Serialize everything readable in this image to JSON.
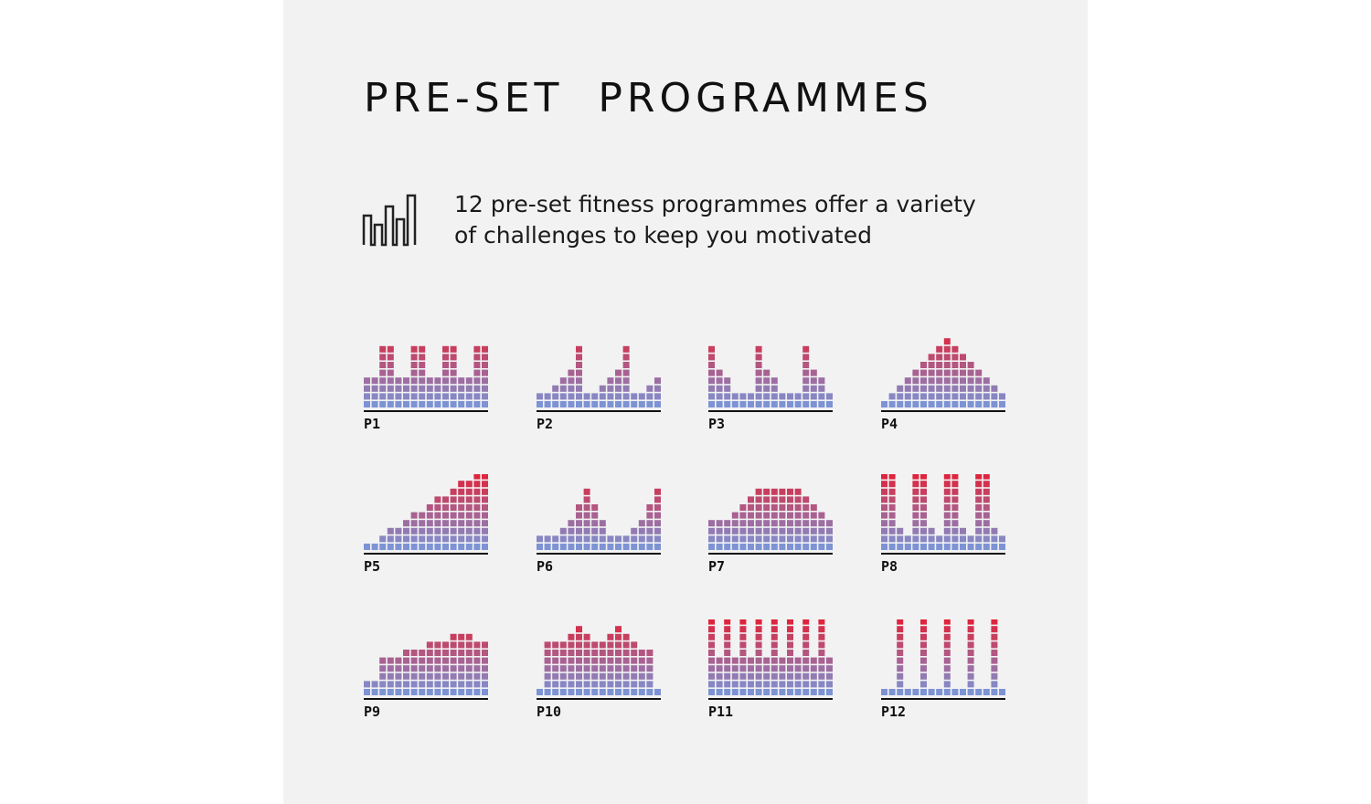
{
  "title": "PRE-SET  PROGRAMMES",
  "description": {
    "line1": "12 pre-set fitness programmes offer a variety",
    "line2": "of challenges to keep you motivated"
  },
  "icons": {
    "intro": "bar-chart-icon"
  },
  "colors": {
    "background": "#f2f2f3",
    "low": "#7d93d4",
    "high": "#e8192c",
    "text": "#111111"
  },
  "programmes": [
    {
      "label": "P1",
      "levels": [
        4,
        4,
        8,
        8,
        4,
        4,
        8,
        8,
        4,
        4,
        8,
        8,
        4,
        4,
        8,
        8
      ]
    },
    {
      "label": "P2",
      "levels": [
        2,
        2,
        3,
        4,
        5,
        8,
        2,
        2,
        3,
        4,
        5,
        8,
        2,
        2,
        3,
        4
      ]
    },
    {
      "label": "P3",
      "levels": [
        8,
        5,
        4,
        2,
        2,
        2,
        8,
        5,
        4,
        2,
        2,
        2,
        8,
        5,
        4,
        2
      ]
    },
    {
      "label": "P4",
      "levels": [
        1,
        2,
        3,
        4,
        5,
        6,
        7,
        8,
        9,
        8,
        7,
        6,
        5,
        4,
        3,
        2
      ]
    },
    {
      "label": "P5",
      "levels": [
        1,
        1,
        2,
        3,
        3,
        4,
        5,
        5,
        6,
        7,
        7,
        8,
        9,
        9,
        10,
        11
      ]
    },
    {
      "label": "P6",
      "levels": [
        2,
        2,
        2,
        3,
        4,
        6,
        8,
        6,
        4,
        2,
        2,
        2,
        3,
        4,
        6,
        8
      ]
    },
    {
      "label": "P7",
      "levels": [
        4,
        4,
        4,
        5,
        6,
        7,
        8,
        8,
        8,
        8,
        8,
        8,
        7,
        6,
        5,
        4
      ]
    },
    {
      "label": "P8",
      "levels": [
        10,
        10,
        3,
        2,
        10,
        10,
        3,
        2,
        10,
        10,
        3,
        2,
        10,
        10,
        3,
        2
      ]
    },
    {
      "label": "P9",
      "levels": [
        2,
        2,
        5,
        5,
        5,
        6,
        6,
        6,
        7,
        7,
        7,
        8,
        8,
        8,
        7,
        7
      ]
    },
    {
      "label": "P10",
      "levels": [
        1,
        7,
        7,
        7,
        8,
        9,
        8,
        7,
        7,
        8,
        9,
        8,
        7,
        6,
        6,
        1
      ]
    },
    {
      "label": "P11",
      "levels": [
        10,
        5,
        10,
        5,
        10,
        5,
        10,
        5,
        10,
        5,
        10,
        5,
        10,
        5,
        10,
        5
      ]
    },
    {
      "label": "P12",
      "levels": [
        1,
        1,
        10,
        1,
        1,
        10,
        1,
        1,
        10,
        1,
        1,
        10,
        1,
        1,
        10,
        1
      ]
    }
  ]
}
